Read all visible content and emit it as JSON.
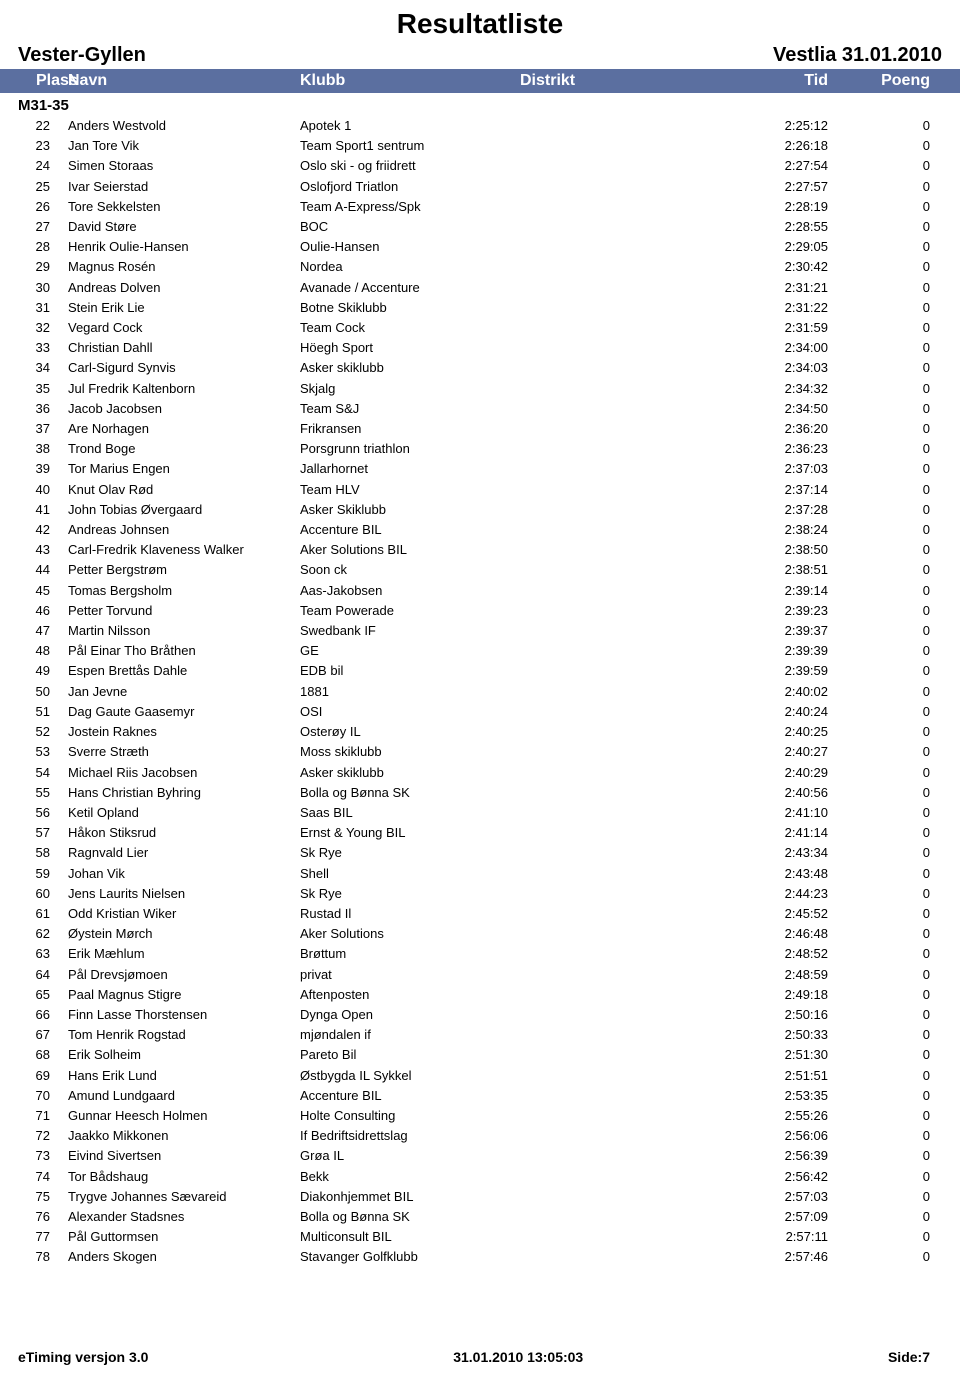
{
  "colors": {
    "header_bg": "#5b6fa0",
    "header_fg": "#ffffff",
    "text": "#000000",
    "bg": "#ffffff"
  },
  "page_title": "Resultatliste",
  "event_name": "Vester-Gyllen",
  "event_venue_date": "Vestlia 31.01.2010",
  "columns": {
    "plass": "Plass",
    "navn": "Navn",
    "klubb": "Klubb",
    "distrikt": "Distrikt",
    "tid": "Tid",
    "poeng": "Poeng"
  },
  "category": "M31-35",
  "rows": [
    {
      "plass": "22",
      "navn": "Anders Westvold",
      "klubb": "Apotek 1",
      "tid": "2:25:12",
      "poeng": "0"
    },
    {
      "plass": "23",
      "navn": "Jan Tore Vik",
      "klubb": "Team Sport1 sentrum",
      "tid": "2:26:18",
      "poeng": "0"
    },
    {
      "plass": "24",
      "navn": "Simen Storaas",
      "klubb": "Oslo ski - og friidrett",
      "tid": "2:27:54",
      "poeng": "0"
    },
    {
      "plass": "25",
      "navn": "Ivar Seierstad",
      "klubb": "Oslofjord Triatlon",
      "tid": "2:27:57",
      "poeng": "0"
    },
    {
      "plass": "26",
      "navn": "Tore Sekkelsten",
      "klubb": "Team A-Express/Spk",
      "tid": "2:28:19",
      "poeng": "0"
    },
    {
      "plass": "27",
      "navn": "David Støre",
      "klubb": "BOC",
      "tid": "2:28:55",
      "poeng": "0"
    },
    {
      "plass": "28",
      "navn": "Henrik Oulie-Hansen",
      "klubb": "Oulie-Hansen",
      "tid": "2:29:05",
      "poeng": "0"
    },
    {
      "plass": "29",
      "navn": "Magnus Rosén",
      "klubb": "Nordea",
      "tid": "2:30:42",
      "poeng": "0"
    },
    {
      "plass": "30",
      "navn": "Andreas Dolven",
      "klubb": "Avanade / Accenture",
      "tid": "2:31:21",
      "poeng": "0"
    },
    {
      "plass": "31",
      "navn": "Stein Erik Lie",
      "klubb": "Botne Skiklubb",
      "tid": "2:31:22",
      "poeng": "0"
    },
    {
      "plass": "32",
      "navn": "Vegard Cock",
      "klubb": "Team Cock",
      "tid": "2:31:59",
      "poeng": "0"
    },
    {
      "plass": "33",
      "navn": "Christian Dahll",
      "klubb": "Höegh Sport",
      "tid": "2:34:00",
      "poeng": "0"
    },
    {
      "plass": "34",
      "navn": "Carl-Sigurd Synvis",
      "klubb": "Asker skiklubb",
      "tid": "2:34:03",
      "poeng": "0"
    },
    {
      "plass": "35",
      "navn": "Jul Fredrik Kaltenborn",
      "klubb": "Skjalg",
      "tid": "2:34:32",
      "poeng": "0"
    },
    {
      "plass": "36",
      "navn": "Jacob Jacobsen",
      "klubb": "Team S&J",
      "tid": "2:34:50",
      "poeng": "0"
    },
    {
      "plass": "37",
      "navn": "Are Norhagen",
      "klubb": "Frikransen",
      "tid": "2:36:20",
      "poeng": "0"
    },
    {
      "plass": "38",
      "navn": "Trond Boge",
      "klubb": "Porsgrunn triathlon",
      "tid": "2:36:23",
      "poeng": "0"
    },
    {
      "plass": "39",
      "navn": "Tor Marius Engen",
      "klubb": "Jallarhornet",
      "tid": "2:37:03",
      "poeng": "0"
    },
    {
      "plass": "40",
      "navn": "Knut Olav Rød",
      "klubb": "Team HLV",
      "tid": "2:37:14",
      "poeng": "0"
    },
    {
      "plass": "41",
      "navn": "John Tobias Øvergaard",
      "klubb": "Asker Skiklubb",
      "tid": "2:37:28",
      "poeng": "0"
    },
    {
      "plass": "42",
      "navn": "Andreas Johnsen",
      "klubb": "Accenture BIL",
      "tid": "2:38:24",
      "poeng": "0"
    },
    {
      "plass": "43",
      "navn": "Carl-Fredrik Klaveness Walker",
      "klubb": "Aker Solutions BIL",
      "tid": "2:38:50",
      "poeng": "0"
    },
    {
      "plass": "44",
      "navn": "Petter Bergstrøm",
      "klubb": "Soon ck",
      "tid": "2:38:51",
      "poeng": "0"
    },
    {
      "plass": "45",
      "navn": "Tomas Bergsholm",
      "klubb": "Aas-Jakobsen",
      "tid": "2:39:14",
      "poeng": "0"
    },
    {
      "plass": "46",
      "navn": "Petter Torvund",
      "klubb": "Team Powerade",
      "tid": "2:39:23",
      "poeng": "0"
    },
    {
      "plass": "47",
      "navn": "Martin Nilsson",
      "klubb": "Swedbank IF",
      "tid": "2:39:37",
      "poeng": "0"
    },
    {
      "plass": "48",
      "navn": "Pål Einar Tho Bråthen",
      "klubb": "GE",
      "tid": "2:39:39",
      "poeng": "0"
    },
    {
      "plass": "49",
      "navn": "Espen Brettås Dahle",
      "klubb": "EDB bil",
      "tid": "2:39:59",
      "poeng": "0"
    },
    {
      "plass": "50",
      "navn": "Jan Jevne",
      "klubb": "1881",
      "tid": "2:40:02",
      "poeng": "0"
    },
    {
      "plass": "51",
      "navn": "Dag Gaute Gaasemyr",
      "klubb": "OSI",
      "tid": "2:40:24",
      "poeng": "0"
    },
    {
      "plass": "52",
      "navn": "Jostein Raknes",
      "klubb": "Osterøy IL",
      "tid": "2:40:25",
      "poeng": "0"
    },
    {
      "plass": "53",
      "navn": "Sverre Stræth",
      "klubb": "Moss skiklubb",
      "tid": "2:40:27",
      "poeng": "0"
    },
    {
      "plass": "54",
      "navn": "Michael Riis Jacobsen",
      "klubb": "Asker skiklubb",
      "tid": "2:40:29",
      "poeng": "0"
    },
    {
      "plass": "55",
      "navn": "Hans Christian Byhring",
      "klubb": "Bolla og Bønna SK",
      "tid": "2:40:56",
      "poeng": "0"
    },
    {
      "plass": "56",
      "navn": "Ketil Opland",
      "klubb": "Saas BIL",
      "tid": "2:41:10",
      "poeng": "0"
    },
    {
      "plass": "57",
      "navn": "Håkon Stiksrud",
      "klubb": "Ernst & Young BIL",
      "tid": "2:41:14",
      "poeng": "0"
    },
    {
      "plass": "58",
      "navn": "Ragnvald Lier",
      "klubb": "Sk Rye",
      "tid": "2:43:34",
      "poeng": "0"
    },
    {
      "plass": "59",
      "navn": "Johan Vik",
      "klubb": "Shell",
      "tid": "2:43:48",
      "poeng": "0"
    },
    {
      "plass": "60",
      "navn": "Jens Laurits Nielsen",
      "klubb": "Sk Rye",
      "tid": "2:44:23",
      "poeng": "0"
    },
    {
      "plass": "61",
      "navn": "Odd Kristian Wiker",
      "klubb": "Rustad Il",
      "tid": "2:45:52",
      "poeng": "0"
    },
    {
      "plass": "62",
      "navn": "Øystein Mørch",
      "klubb": "Aker Solutions",
      "tid": "2:46:48",
      "poeng": "0"
    },
    {
      "plass": "63",
      "navn": "Erik Mæhlum",
      "klubb": "Brøttum",
      "tid": "2:48:52",
      "poeng": "0"
    },
    {
      "plass": "64",
      "navn": "Pål Drevsjømoen",
      "klubb": "privat",
      "tid": "2:48:59",
      "poeng": "0"
    },
    {
      "plass": "65",
      "navn": "Paal Magnus Stigre",
      "klubb": "Aftenposten",
      "tid": "2:49:18",
      "poeng": "0"
    },
    {
      "plass": "66",
      "navn": "Finn Lasse Thorstensen",
      "klubb": "Dynga Open",
      "tid": "2:50:16",
      "poeng": "0"
    },
    {
      "plass": "67",
      "navn": "Tom Henrik Rogstad",
      "klubb": "mjøndalen if",
      "tid": "2:50:33",
      "poeng": "0"
    },
    {
      "plass": "68",
      "navn": "Erik Solheim",
      "klubb": "Pareto Bil",
      "tid": "2:51:30",
      "poeng": "0"
    },
    {
      "plass": "69",
      "navn": "Hans Erik Lund",
      "klubb": "Østbygda IL Sykkel",
      "tid": "2:51:51",
      "poeng": "0"
    },
    {
      "plass": "70",
      "navn": "Amund Lundgaard",
      "klubb": "Accenture BIL",
      "tid": "2:53:35",
      "poeng": "0"
    },
    {
      "plass": "71",
      "navn": "Gunnar Heesch Holmen",
      "klubb": "Holte Consulting",
      "tid": "2:55:26",
      "poeng": "0"
    },
    {
      "plass": "72",
      "navn": "Jaakko Mikkonen",
      "klubb": "If Bedriftsidrettslag",
      "tid": "2:56:06",
      "poeng": "0"
    },
    {
      "plass": "73",
      "navn": "Eivind Sivertsen",
      "klubb": "Grøa IL",
      "tid": "2:56:39",
      "poeng": "0"
    },
    {
      "plass": "74",
      "navn": "Tor Bådshaug",
      "klubb": "Bekk",
      "tid": "2:56:42",
      "poeng": "0"
    },
    {
      "plass": "75",
      "navn": "Trygve Johannes Sævareid",
      "klubb": "Diakonhjemmet BIL",
      "tid": "2:57:03",
      "poeng": "0"
    },
    {
      "plass": "76",
      "navn": "Alexander Stadsnes",
      "klubb": "Bolla og Bønna SK",
      "tid": "2:57:09",
      "poeng": "0"
    },
    {
      "plass": "77",
      "navn": "Pål Guttormsen",
      "klubb": "Multiconsult BIL",
      "tid": "2:57:11",
      "poeng": "0"
    },
    {
      "plass": "78",
      "navn": "Anders Skogen",
      "klubb": "Stavanger Golfklubb",
      "tid": "2:57:46",
      "poeng": "0"
    }
  ],
  "footer": {
    "left": "eTiming versjon 3.0",
    "center": "31.01.2010 13:05:03",
    "right": "Side:7"
  }
}
